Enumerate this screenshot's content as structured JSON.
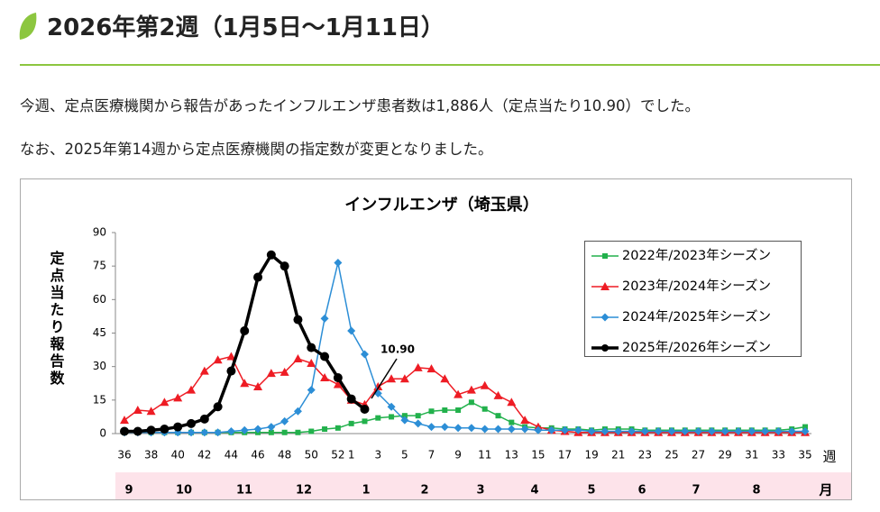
{
  "header": {
    "title": "2026年第2週（1月5日～1月11日）"
  },
  "paragraphs": [
    "今週、定点医療機関から報告があったインフルエンザ患者数は1,886人（定点当たり10.90）でした。",
    "なお、2025年第14週から定点医療機関の指定数が変更となりました。"
  ],
  "chart_data": {
    "type": "line",
    "title": "インフルエンザ（埼玉県）",
    "y_label": "定点当たり報告数",
    "x_unit": "週",
    "month_unit": "月",
    "months": [
      "9",
      "10",
      "11",
      "12",
      "1",
      "2",
      "3",
      "4",
      "5",
      "6",
      "7",
      "8"
    ],
    "annotation": "10.90",
    "categories": [
      "36",
      null,
      "38",
      null,
      "40",
      null,
      "42",
      null,
      "44",
      null,
      "46",
      null,
      "48",
      null,
      "50",
      null,
      "52",
      "1",
      null,
      "3",
      null,
      "5",
      null,
      "7",
      null,
      "9",
      null,
      "11",
      null,
      "13",
      null,
      "15",
      null,
      "17",
      null,
      "19",
      null,
      "21",
      null,
      "23",
      null,
      "25",
      null,
      "27",
      null,
      "29",
      null,
      "31",
      null,
      "33",
      null,
      "35"
    ],
    "ylim": [
      0,
      90
    ],
    "yticks": [
      0,
      15,
      30,
      45,
      60,
      75,
      90
    ],
    "grid": false,
    "legend": "upper right",
    "series": [
      {
        "name": "2022年/2023年シーズン",
        "color": "#22b14c",
        "marker": "square",
        "width": 1.5,
        "values": [
          0.5,
          0.5,
          0.5,
          0.5,
          0.5,
          0.5,
          0.5,
          0.5,
          0.5,
          0.5,
          0.5,
          0.5,
          0.5,
          0.5,
          1,
          2,
          2.5,
          4.5,
          5.5,
          7,
          7.5,
          8,
          8,
          10,
          10.5,
          10.5,
          14,
          11,
          8,
          5,
          3,
          2.5,
          2.5,
          2,
          2,
          1.5,
          2,
          2,
          2,
          1.5,
          1.5,
          1.5,
          1.5,
          1.5,
          1.5,
          1.5,
          1.5,
          1.5,
          1.5,
          1.5,
          2,
          3
        ]
      },
      {
        "name": "2023年/2024年シーズン",
        "color": "#ee1c24",
        "marker": "triangle",
        "width": 1.5,
        "values": [
          6,
          10.5,
          10,
          14,
          16,
          19.5,
          28,
          33,
          34.5,
          22.5,
          21,
          27,
          27.5,
          33.5,
          31.5,
          25,
          22,
          15,
          13,
          21,
          24.5,
          24.5,
          29.5,
          29,
          24.5,
          17.5,
          19.5,
          21.5,
          17,
          14,
          6,
          3,
          1.5,
          1,
          0.5,
          0.5,
          0.5,
          0.5,
          0.5,
          0.5,
          0.5,
          0.5,
          0.5,
          0.5,
          0.5,
          0.5,
          0.5,
          0.5,
          0.5,
          0.5,
          0.5,
          0.5
        ]
      },
      {
        "name": "2024年/2025年シーズン",
        "color": "#2c8ed6",
        "marker": "diamond",
        "width": 1.5,
        "values": [
          0.5,
          0.5,
          0.5,
          0.5,
          0.5,
          0.5,
          0.5,
          0.5,
          1,
          1.5,
          2,
          3,
          5.5,
          10,
          19.5,
          51.5,
          76.5,
          46,
          35.5,
          18,
          12,
          6,
          4.5,
          3,
          3,
          2.5,
          2.5,
          2,
          2,
          2,
          2,
          1.5,
          1.5,
          1.5,
          1.5,
          1,
          1,
          1,
          1,
          1,
          1,
          1,
          1,
          1,
          1,
          1,
          1,
          1,
          1,
          1,
          1,
          1
        ]
      },
      {
        "name": "2025年/2026年シーズン",
        "color": "#000000",
        "marker": "circle",
        "width": 3.5,
        "values": [
          1,
          1,
          1.5,
          2,
          3,
          4.5,
          6.5,
          12,
          28,
          46,
          70,
          80,
          75,
          51,
          38.5,
          34.5,
          25,
          15.5,
          10.9,
          null,
          null,
          null,
          null,
          null,
          null,
          null,
          null,
          null,
          null,
          null,
          null,
          null,
          null,
          null,
          null,
          null,
          null,
          null,
          null,
          null,
          null,
          null,
          null,
          null,
          null,
          null,
          null,
          null,
          null,
          null,
          null,
          null
        ]
      }
    ]
  }
}
